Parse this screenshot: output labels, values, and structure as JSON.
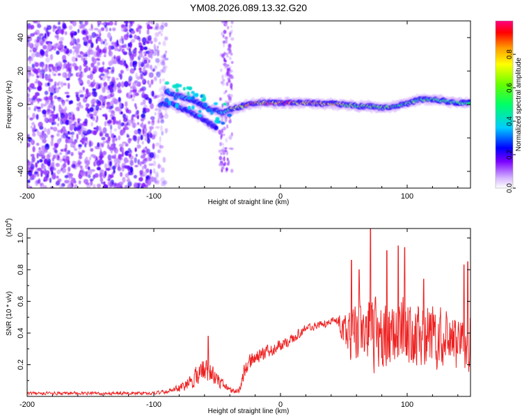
{
  "title": "YM08.2026.089.13.32.G20",
  "chart_data": [
    {
      "type": "heatmap",
      "title": "YM08.2026.089.13.32.G20",
      "xlabel": "Height of straight line (km)",
      "ylabel": "Frequency (Hz)",
      "xlim": [
        -200,
        150
      ],
      "ylim": [
        -50,
        50
      ],
      "xticks": [
        -200,
        -100,
        0,
        100
      ],
      "yticks": [
        -40,
        -20,
        0,
        20,
        40
      ],
      "colorbar": {
        "label": "Normalized spectral amplitude",
        "ticks": [
          0.0,
          0.2,
          0.4,
          0.6,
          0.8
        ],
        "range": [
          0,
          1
        ]
      },
      "noise_region": {
        "x": [
          -200,
          -90
        ],
        "y": [
          -50,
          50
        ],
        "amplitude": 0.05
      },
      "narrow_noise_band": {
        "x": [
          -48,
          -38
        ],
        "y": [
          -40,
          50
        ],
        "amplitude": 0.03
      },
      "ridge": {
        "x": [
          -90,
          -85,
          -80,
          -75,
          -70,
          -65,
          -60,
          -55,
          -50,
          -45,
          -40,
          -35,
          -30,
          -25,
          -20,
          -10,
          0,
          10,
          20,
          30,
          40,
          50,
          60,
          70,
          80,
          90,
          100,
          110,
          120,
          130,
          140,
          150
        ],
        "y": [
          8,
          6,
          5,
          4,
          3,
          1,
          -1,
          -3,
          -4,
          -5,
          -3,
          -2,
          -1,
          0,
          1,
          1,
          1,
          1,
          1,
          0.5,
          0.5,
          0,
          -1,
          -1,
          -2,
          -1,
          0.5,
          3,
          3,
          2,
          1,
          1
        ],
        "amplitude": [
          0.3,
          0.35,
          0.35,
          0.35,
          0.3,
          0.3,
          0.3,
          0.3,
          0.35,
          0.4,
          0.6,
          0.75,
          0.8,
          0.85,
          0.9,
          0.9,
          0.9,
          0.9,
          0.9,
          0.85,
          0.8,
          0.7,
          0.6,
          0.6,
          0.65,
          0.65,
          0.6,
          0.55,
          0.55,
          0.5,
          0.5,
          0.5
        ]
      },
      "secondary_ridge": {
        "x": [
          -95,
          -90,
          -85,
          -80,
          -75,
          -70,
          -65,
          -60,
          -55,
          -50
        ],
        "y": [
          0,
          0,
          0,
          -2,
          -3,
          -5,
          -7,
          -9,
          -12,
          -14
        ],
        "amplitude": [
          0.3,
          0.35,
          0.3,
          0.3,
          0.3,
          0.25,
          0.25,
          0.25,
          0.25,
          0.2
        ]
      }
    },
    {
      "type": "line",
      "xlabel": "Height of straight line (km)",
      "ylabel": "SNR (10 * v/v)",
      "multiplier_label": "(x10",
      "multiplier_exponent": "4",
      "xlim": [
        -200,
        150
      ],
      "ylim": [
        0,
        1.06
      ],
      "xticks": [
        -200,
        -100,
        0,
        100
      ],
      "yticks": [
        0.2,
        0.4,
        0.6,
        0.8,
        1.0
      ],
      "series": [
        {
          "name": "SNR",
          "color": "#ee2222",
          "envelope": {
            "x": [
              -200,
              -150,
              -100,
              -85,
              -75,
              -70,
              -65,
              -60,
              -55,
              -50,
              -45,
              -40,
              -36,
              -32,
              -28,
              -24,
              -20,
              -15,
              -10,
              -5,
              0,
              5,
              10,
              15,
              20,
              25,
              30,
              35,
              40,
              45,
              48,
              52,
              55,
              60,
              65,
              70,
              75,
              80,
              85,
              90,
              95,
              100,
              105,
              110,
              115,
              120,
              125,
              130,
              135,
              140,
              145,
              150
            ],
            "mean": [
              0.02,
              0.02,
              0.02,
              0.04,
              0.07,
              0.1,
              0.14,
              0.17,
              0.15,
              0.11,
              0.07,
              0.04,
              0.03,
              0.05,
              0.18,
              0.22,
              0.24,
              0.26,
              0.28,
              0.3,
              0.32,
              0.34,
              0.37,
              0.4,
              0.43,
              0.44,
              0.45,
              0.46,
              0.47,
              0.48,
              0.44,
              0.4,
              0.38,
              0.4,
              0.42,
              0.42,
              0.4,
              0.38,
              0.4,
              0.4,
              0.42,
              0.4,
              0.4,
              0.4,
              0.38,
              0.38,
              0.36,
              0.36,
              0.34,
              0.34,
              0.32,
              0.34
            ],
            "spread": [
              0.012,
              0.012,
              0.012,
              0.02,
              0.04,
              0.06,
              0.08,
              0.1,
              0.09,
              0.06,
              0.03,
              0.02,
              0.015,
              0.03,
              0.07,
              0.07,
              0.06,
              0.06,
              0.05,
              0.05,
              0.05,
              0.04,
              0.04,
              0.035,
              0.03,
              0.03,
              0.03,
              0.03,
              0.03,
              0.04,
              0.1,
              0.16,
              0.2,
              0.24,
              0.26,
              0.28,
              0.28,
              0.26,
              0.26,
              0.26,
              0.28,
              0.26,
              0.26,
              0.26,
              0.24,
              0.24,
              0.24,
              0.24,
              0.22,
              0.22,
              0.22,
              0.24
            ]
          },
          "peaks": [
            {
              "x": 71,
              "y": 1.06
            },
            {
              "x": 93,
              "y": 0.95
            },
            {
              "x": 98,
              "y": 0.94
            },
            {
              "x": 84,
              "y": 0.92
            },
            {
              "x": 56,
              "y": 0.86
            },
            {
              "x": 148,
              "y": 0.85
            },
            {
              "x": 62,
              "y": 0.8
            },
            {
              "x": 145,
              "y": 0.83
            },
            {
              "x": 113,
              "y": 0.74
            },
            {
              "x": -57,
              "y": 0.38
            }
          ]
        }
      ]
    }
  ]
}
